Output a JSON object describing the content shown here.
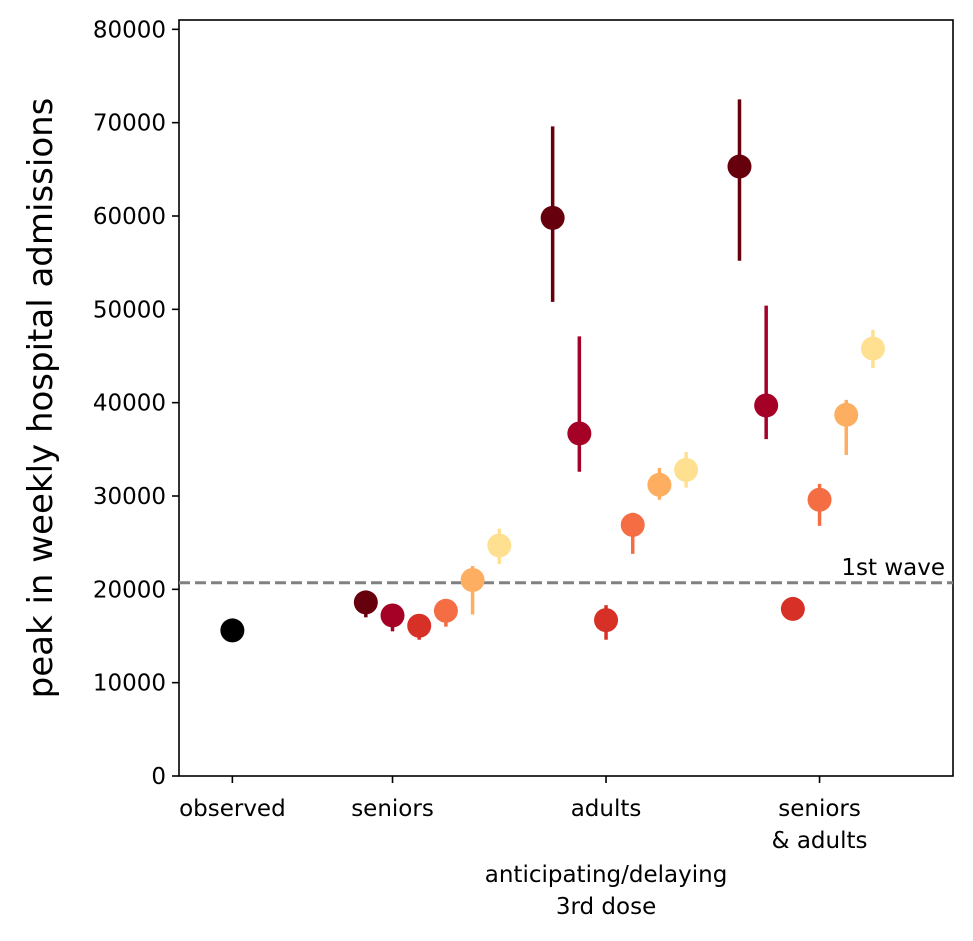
{
  "chart_data": {
    "type": "scatter",
    "ylabel": "peak in weekly hospital admissions",
    "xlabel_lines": [
      "anticipating/delaying",
      "3rd dose"
    ],
    "ylim": [
      0,
      81000
    ],
    "yticks": [
      0,
      10000,
      20000,
      30000,
      40000,
      50000,
      60000,
      70000,
      80000
    ],
    "xticks": [
      {
        "x": 0,
        "lines": [
          "observed"
        ]
      },
      {
        "x": 3,
        "lines": [
          "seniors"
        ]
      },
      {
        "x": 7,
        "lines": [
          "adults"
        ]
      },
      {
        "x": 11,
        "lines": [
          "seniors",
          "& adults"
        ]
      }
    ],
    "reference_line": {
      "y": 20700,
      "label": "1st wave",
      "color": "#808080",
      "style": "dashed"
    },
    "grid": false,
    "points": [
      {
        "group": "observed",
        "x": 0,
        "y": 15600,
        "lo": 15600,
        "hi": 15600,
        "color": "#000000"
      },
      {
        "group": "seniors",
        "x": 2.5,
        "y": 18600,
        "lo": 17000,
        "hi": 19200,
        "color": "#67000d"
      },
      {
        "group": "seniors",
        "x": 3.0,
        "y": 17200,
        "lo": 15500,
        "hi": 18200,
        "color": "#a50026"
      },
      {
        "group": "seniors",
        "x": 3.5,
        "y": 16100,
        "lo": 14600,
        "hi": 17300,
        "color": "#d73027"
      },
      {
        "group": "seniors",
        "x": 4.0,
        "y": 17700,
        "lo": 16000,
        "hi": 18500,
        "color": "#f46d43"
      },
      {
        "group": "seniors",
        "x": 4.5,
        "y": 21000,
        "lo": 17300,
        "hi": 22500,
        "color": "#fdae61"
      },
      {
        "group": "seniors",
        "x": 5.0,
        "y": 24700,
        "lo": 22700,
        "hi": 26500,
        "color": "#fee090"
      },
      {
        "group": "adults",
        "x": 6.0,
        "y": 59800,
        "lo": 50800,
        "hi": 69600,
        "color": "#67000d"
      },
      {
        "group": "adults",
        "x": 6.5,
        "y": 36700,
        "lo": 32600,
        "hi": 47100,
        "color": "#a50026"
      },
      {
        "group": "adults",
        "x": 7.0,
        "y": 16700,
        "lo": 14600,
        "hi": 18300,
        "color": "#d73027"
      },
      {
        "group": "adults",
        "x": 7.5,
        "y": 26900,
        "lo": 23800,
        "hi": 28200,
        "color": "#f46d43"
      },
      {
        "group": "adults",
        "x": 8.0,
        "y": 31200,
        "lo": 29600,
        "hi": 33000,
        "color": "#fdae61"
      },
      {
        "group": "adults",
        "x": 8.5,
        "y": 32800,
        "lo": 30900,
        "hi": 34700,
        "color": "#fee090"
      },
      {
        "group": "seniors & adults",
        "x": 9.5,
        "y": 65300,
        "lo": 55200,
        "hi": 72500,
        "color": "#67000d"
      },
      {
        "group": "seniors & adults",
        "x": 10.0,
        "y": 39700,
        "lo": 36100,
        "hi": 50400,
        "color": "#a50026"
      },
      {
        "group": "seniors & adults",
        "x": 10.5,
        "y": 17900,
        "lo": 16900,
        "hi": 18600,
        "color": "#d73027"
      },
      {
        "group": "seniors & adults",
        "x": 11.0,
        "y": 29600,
        "lo": 26800,
        "hi": 31300,
        "color": "#f46d43"
      },
      {
        "group": "seniors & adults",
        "x": 11.5,
        "y": 38700,
        "lo": 34400,
        "hi": 40300,
        "color": "#fdae61"
      },
      {
        "group": "seniors & adults",
        "x": 12.0,
        "y": 45800,
        "lo": 43700,
        "hi": 47800,
        "color": "#fee090"
      }
    ]
  }
}
